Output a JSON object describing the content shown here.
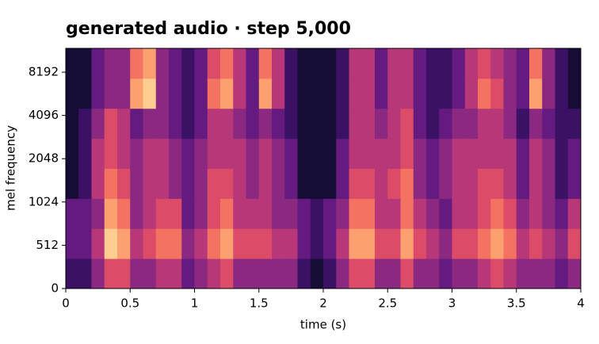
{
  "chart_data": {
    "type": "heatmap",
    "title": "generated audio  ·  step 5,000",
    "xlabel": "time (s)",
    "ylabel": "mel frequency",
    "colormap": "magma",
    "yscale": "symlog",
    "linthresh": 1024,
    "xlim": [
      0,
      4
    ],
    "xticks": [
      0,
      0.5,
      1,
      1.5,
      2,
      2.5,
      3,
      3.5,
      4
    ],
    "ylim": [
      0,
      12000
    ],
    "yticks": [
      0,
      512,
      1024,
      2048,
      4096,
      8192
    ],
    "z": [
      [
        0.2,
        0.2,
        0.4,
        0.6,
        0.6,
        0.4,
        0.4,
        0.5,
        0.5,
        0.3,
        0.4,
        0.5,
        0.6,
        0.4,
        0.4,
        0.4,
        0.4,
        0.4,
        0.2,
        0.1,
        0.2,
        0.4,
        0.6,
        0.6,
        0.4,
        0.4,
        0.6,
        0.4,
        0.4,
        0.3,
        0.4,
        0.4,
        0.5,
        0.6,
        0.5,
        0.4,
        0.4,
        0.4,
        0.3,
        0.4
      ],
      [
        0.3,
        0.3,
        0.5,
        0.9,
        0.8,
        0.5,
        0.6,
        0.7,
        0.7,
        0.4,
        0.5,
        0.7,
        0.8,
        0.6,
        0.6,
        0.6,
        0.5,
        0.5,
        0.3,
        0.2,
        0.3,
        0.5,
        0.8,
        0.8,
        0.6,
        0.6,
        0.8,
        0.6,
        0.5,
        0.4,
        0.6,
        0.6,
        0.7,
        0.8,
        0.7,
        0.5,
        0.6,
        0.5,
        0.4,
        0.6
      ],
      [
        0.3,
        0.3,
        0.4,
        0.8,
        0.7,
        0.4,
        0.5,
        0.6,
        0.6,
        0.3,
        0.4,
        0.6,
        0.7,
        0.5,
        0.5,
        0.5,
        0.4,
        0.4,
        0.3,
        0.2,
        0.3,
        0.4,
        0.7,
        0.7,
        0.5,
        0.5,
        0.7,
        0.5,
        0.4,
        0.3,
        0.5,
        0.5,
        0.6,
        0.7,
        0.6,
        0.4,
        0.5,
        0.4,
        0.3,
        0.5
      ],
      [
        0.1,
        0.2,
        0.5,
        0.7,
        0.6,
        0.4,
        0.5,
        0.5,
        0.4,
        0.3,
        0.4,
        0.6,
        0.6,
        0.5,
        0.4,
        0.5,
        0.4,
        0.3,
        0.1,
        0.1,
        0.1,
        0.3,
        0.6,
        0.6,
        0.5,
        0.6,
        0.7,
        0.4,
        0.3,
        0.4,
        0.5,
        0.5,
        0.6,
        0.6,
        0.5,
        0.3,
        0.5,
        0.4,
        0.2,
        0.3
      ],
      [
        0.1,
        0.2,
        0.5,
        0.6,
        0.5,
        0.4,
        0.5,
        0.5,
        0.4,
        0.3,
        0.4,
        0.5,
        0.5,
        0.5,
        0.4,
        0.5,
        0.4,
        0.3,
        0.1,
        0.1,
        0.1,
        0.3,
        0.5,
        0.5,
        0.5,
        0.5,
        0.6,
        0.4,
        0.3,
        0.4,
        0.5,
        0.5,
        0.5,
        0.5,
        0.5,
        0.3,
        0.5,
        0.4,
        0.2,
        0.3
      ],
      [
        0.1,
        0.2,
        0.4,
        0.6,
        0.5,
        0.3,
        0.4,
        0.4,
        0.3,
        0.2,
        0.3,
        0.5,
        0.5,
        0.4,
        0.3,
        0.4,
        0.3,
        0.2,
        0.1,
        0.1,
        0.1,
        0.2,
        0.5,
        0.5,
        0.4,
        0.5,
        0.6,
        0.3,
        0.2,
        0.3,
        0.4,
        0.4,
        0.5,
        0.5,
        0.4,
        0.2,
        0.4,
        0.3,
        0.2,
        0.2
      ],
      [
        0.1,
        0.1,
        0.3,
        0.4,
        0.4,
        0.8,
        0.9,
        0.4,
        0.3,
        0.2,
        0.3,
        0.7,
        0.8,
        0.5,
        0.3,
        0.8,
        0.5,
        0.2,
        0.1,
        0.1,
        0.1,
        0.2,
        0.5,
        0.5,
        0.3,
        0.5,
        0.5,
        0.3,
        0.2,
        0.2,
        0.3,
        0.5,
        0.7,
        0.6,
        0.4,
        0.3,
        0.8,
        0.4,
        0.2,
        0.1
      ],
      [
        0.1,
        0.1,
        0.3,
        0.4,
        0.4,
        0.7,
        0.8,
        0.4,
        0.3,
        0.2,
        0.3,
        0.6,
        0.7,
        0.5,
        0.3,
        0.7,
        0.5,
        0.2,
        0.1,
        0.1,
        0.1,
        0.2,
        0.5,
        0.5,
        0.3,
        0.5,
        0.5,
        0.3,
        0.2,
        0.2,
        0.3,
        0.5,
        0.6,
        0.5,
        0.4,
        0.3,
        0.7,
        0.4,
        0.2,
        0.1
      ]
    ]
  }
}
